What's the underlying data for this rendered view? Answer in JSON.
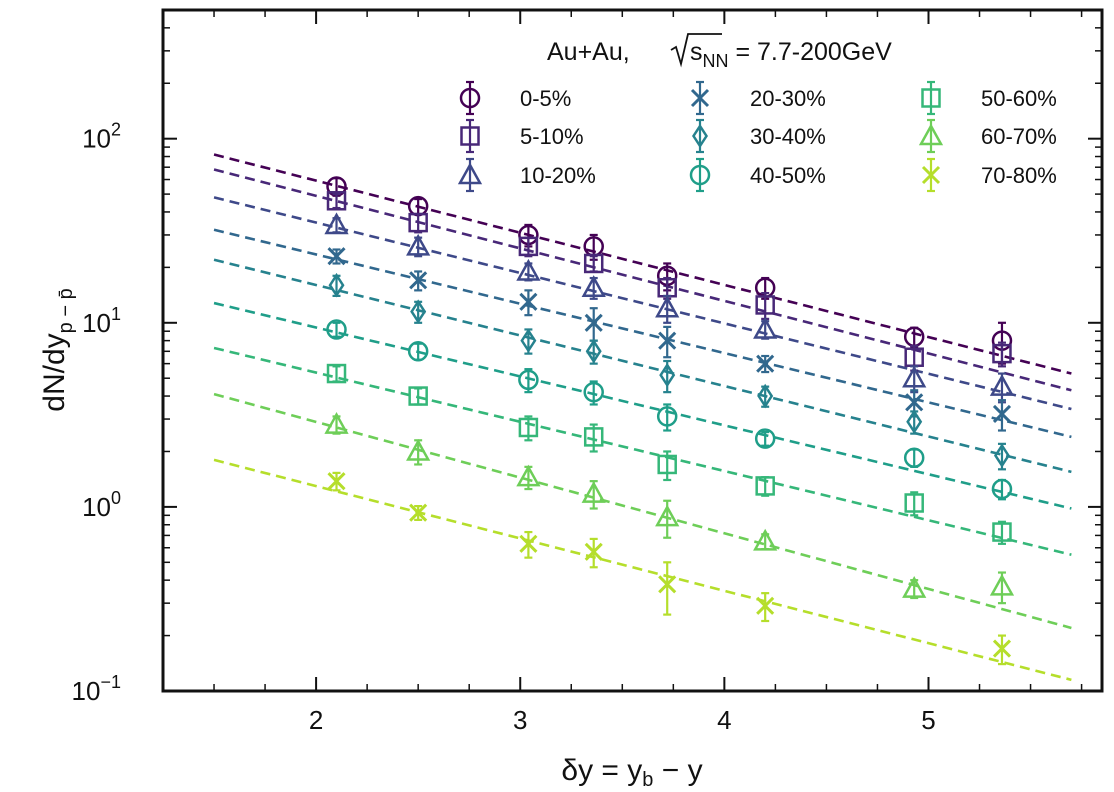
{
  "chart_data": {
    "type": "scatter",
    "title": "",
    "legend_title": "Au+Au, √s_NN = 7.7-200GeV",
    "legend_title_parts": {
      "prefix": "Au+Au, ",
      "s": "s",
      "sub": "NN",
      "suffix": " = 7.7-200GeV"
    },
    "legend_placement": "top-right",
    "xlabel": "δy = y_b − y",
    "xlabel_parts": {
      "main": "δy = y",
      "sub": "b",
      "tail": " − y"
    },
    "ylabel": "dN/dy_{p−p̄}",
    "ylabel_parts": {
      "main": "dN/dy",
      "sub": "p − p̄"
    },
    "xlim": [
      1.25,
      5.85
    ],
    "ylim": [
      0.1,
      500
    ],
    "yscale": "log",
    "grid": false,
    "x_ticks": [
      {
        "value": 2,
        "label": "2"
      },
      {
        "value": 3,
        "label": "3"
      },
      {
        "value": 4,
        "label": "4"
      },
      {
        "value": 5,
        "label": "5"
      }
    ],
    "y_ticks": [
      {
        "value": 0.1,
        "base": "10",
        "exp": "−1"
      },
      {
        "value": 1,
        "base": "10",
        "exp": "0"
      },
      {
        "value": 10,
        "base": "10",
        "exp": "1"
      },
      {
        "value": 100,
        "base": "10",
        "exp": "2"
      }
    ],
    "x": [
      2.1,
      2.5,
      3.04,
      3.36,
      3.72,
      4.2,
      4.93,
      5.36
    ],
    "fit_x_range": [
      1.5,
      5.7
    ],
    "series": [
      {
        "name": "0-5%",
        "marker": "circle",
        "color": "#440154",
        "y": [
          55,
          43,
          30,
          26,
          18,
          15.5,
          8.4,
          8.0
        ],
        "err": [
          6,
          4,
          4,
          4,
          3,
          2,
          1,
          2
        ],
        "fit": [
          82,
          5.3
        ]
      },
      {
        "name": "5-10%",
        "marker": "square",
        "color": "#482878",
        "y": [
          46,
          35,
          26,
          21,
          15.5,
          12.5,
          6.5,
          6.8
        ],
        "err": [
          4,
          4,
          3,
          2,
          2,
          2,
          1,
          1
        ],
        "fit": [
          68,
          4.3
        ]
      },
      {
        "name": "10-20%",
        "marker": "triangle",
        "color": "#3e4989",
        "y": [
          34,
          26,
          19,
          15.5,
          12,
          9.2,
          5.0,
          4.5
        ],
        "err": [
          3,
          3,
          2,
          2,
          2,
          1,
          0.8,
          0.8
        ],
        "fit": [
          48,
          3.4
        ]
      },
      {
        "name": "20-30%",
        "marker": "xcross",
        "color": "#31688e",
        "y": [
          23,
          17,
          13,
          10,
          8.0,
          6.0,
          3.7,
          3.2
        ],
        "err": [
          2,
          2,
          2,
          2,
          1.5,
          0.6,
          0.6,
          0.6
        ],
        "fit": [
          32,
          2.4
        ]
      },
      {
        "name": "30-40%",
        "marker": "diamond",
        "color": "#26828e",
        "y": [
          16,
          11.5,
          8.0,
          7.0,
          5.2,
          4.0,
          2.9,
          1.9
        ],
        "err": [
          2,
          1.5,
          1.2,
          1,
          1,
          0.5,
          0.4,
          0.3
        ],
        "fit": [
          22,
          1.55
        ]
      },
      {
        "name": "40-50%",
        "marker": "circle",
        "color": "#1f9e89",
        "y": [
          9.2,
          7.0,
          4.9,
          4.2,
          3.1,
          2.35,
          1.85,
          1.25
        ],
        "err": [
          0.8,
          0.7,
          0.7,
          0.6,
          0.5,
          0.2,
          0.2,
          0.15
        ],
        "fit": [
          12.8,
          0.98
        ]
      },
      {
        "name": "50-60%",
        "marker": "square",
        "color": "#35b779",
        "y": [
          5.3,
          4.0,
          2.7,
          2.4,
          1.7,
          1.3,
          1.05,
          0.73
        ],
        "err": [
          0.5,
          0.4,
          0.4,
          0.4,
          0.3,
          0.15,
          0.15,
          0.1
        ],
        "fit": [
          7.3,
          0.55
        ]
      },
      {
        "name": "60-70%",
        "marker": "triangle",
        "color": "#6ece58",
        "y": [
          2.8,
          2.0,
          1.45,
          1.18,
          0.88,
          0.65,
          0.36,
          0.37
        ],
        "err": [
          0.3,
          0.3,
          0.2,
          0.2,
          0.2,
          0.06,
          0.04,
          0.07
        ],
        "fit": [
          4.1,
          0.22
        ]
      },
      {
        "name": "70-80%",
        "marker": "xcross",
        "color": "#b5de2b",
        "y": [
          1.38,
          0.93,
          0.63,
          0.57,
          0.38,
          0.29,
          null,
          0.17
        ],
        "err": [
          0.15,
          0.08,
          0.1,
          0.1,
          0.12,
          0.05,
          null,
          0.03
        ],
        "fit": [
          1.8,
          0.115
        ]
      }
    ]
  }
}
